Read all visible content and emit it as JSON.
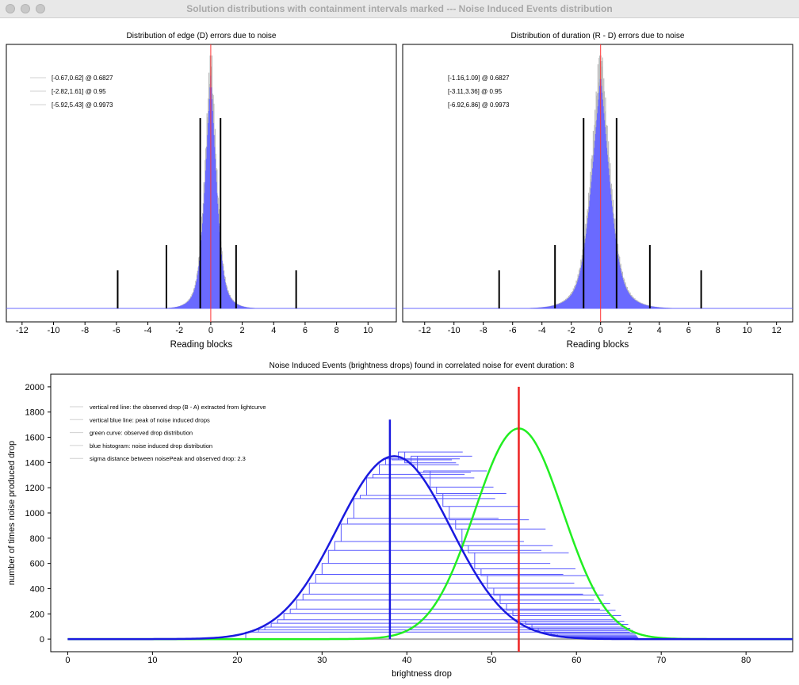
{
  "window": {
    "title": "Solution distributions with containment intervals marked --- Noise Induced Events distribution"
  },
  "chart_data": [
    {
      "type": "bar",
      "title": "Distribution of edge (D) errors due to noise",
      "xlabel": "Reading blocks",
      "xlim": [
        -13,
        11.8
      ],
      "xticks": [
        -12,
        -10,
        -8,
        -6,
        -4,
        -2,
        0,
        2,
        4,
        6,
        8,
        10
      ],
      "legend": [
        "[-0.67,0.62] @ 0.6827",
        "[-2.82,1.61] @ 0.95",
        "[-5.92,5.43] @ 0.9973"
      ],
      "intervals": [
        [
          -0.67,
          0.62,
          0.6827
        ],
        [
          -2.82,
          1.61,
          0.95
        ],
        [
          -5.92,
          5.43,
          0.9973
        ]
      ],
      "distribution": {
        "shape": "laplace-like histogram",
        "center": 0,
        "scale": 0.55
      },
      "observed_line": 0
    },
    {
      "type": "bar",
      "title": "Distribution of duration (R - D) errors due to noise",
      "xlabel": "Reading blocks",
      "xlim": [
        -13.5,
        13.1
      ],
      "xticks": [
        -12,
        -10,
        -8,
        -6,
        -4,
        -2,
        0,
        2,
        4,
        6,
        8,
        10,
        12
      ],
      "legend": [
        "[-1.16,1.09] @ 0.6827",
        "[-3.11,3.36] @ 0.95",
        "[-6.92,6.86] @ 0.9973"
      ],
      "intervals": [
        [
          -1.16,
          1.09,
          0.6827
        ],
        [
          -3.11,
          3.36,
          0.95
        ],
        [
          -6.92,
          6.86,
          0.9973
        ]
      ],
      "distribution": {
        "shape": "laplace-like histogram",
        "center": 0,
        "scale": 0.95
      },
      "observed_line": 0
    },
    {
      "type": "line",
      "title": "Noise Induced Events (brightness drops) found in correlated noise for event duration: 8",
      "xlabel": "brightness drop",
      "ylabel": "number of times noise produced drop",
      "xlim": [
        -2,
        85.5
      ],
      "ylim": [
        -100,
        2100
      ],
      "xticks": [
        0,
        10,
        20,
        30,
        40,
        50,
        60,
        70,
        80
      ],
      "yticks": [
        0,
        200,
        400,
        600,
        800,
        1000,
        1200,
        1400,
        1600,
        1800,
        2000
      ],
      "legend": [
        "vertical red line: the observed drop (B - A) extracted from lightcurve",
        "vertical blue line: peak of noise induced drops",
        "green curve: observed drop distribution",
        "blue histogram: noise induced drop distribution",
        "sigma distance between noisePeak and observed drop: 2.3"
      ],
      "series": [
        {
          "name": "noise induced drop distribution",
          "type": "gaussian",
          "mean": 38.5,
          "sigma": 6.7,
          "peak": 1450,
          "color": "#1a1adf"
        },
        {
          "name": "observed drop distribution",
          "type": "gaussian",
          "mean": 53.2,
          "sigma": 5.2,
          "peak": 1670,
          "color": "#22ee22"
        }
      ],
      "red_line": {
        "x": 53.2,
        "top": 2000,
        "color": "#ee2222"
      },
      "blue_line": {
        "x": 38,
        "top": 1740,
        "color": "#1a1adf"
      },
      "x_range_curve": [
        0,
        85.5
      ]
    }
  ]
}
